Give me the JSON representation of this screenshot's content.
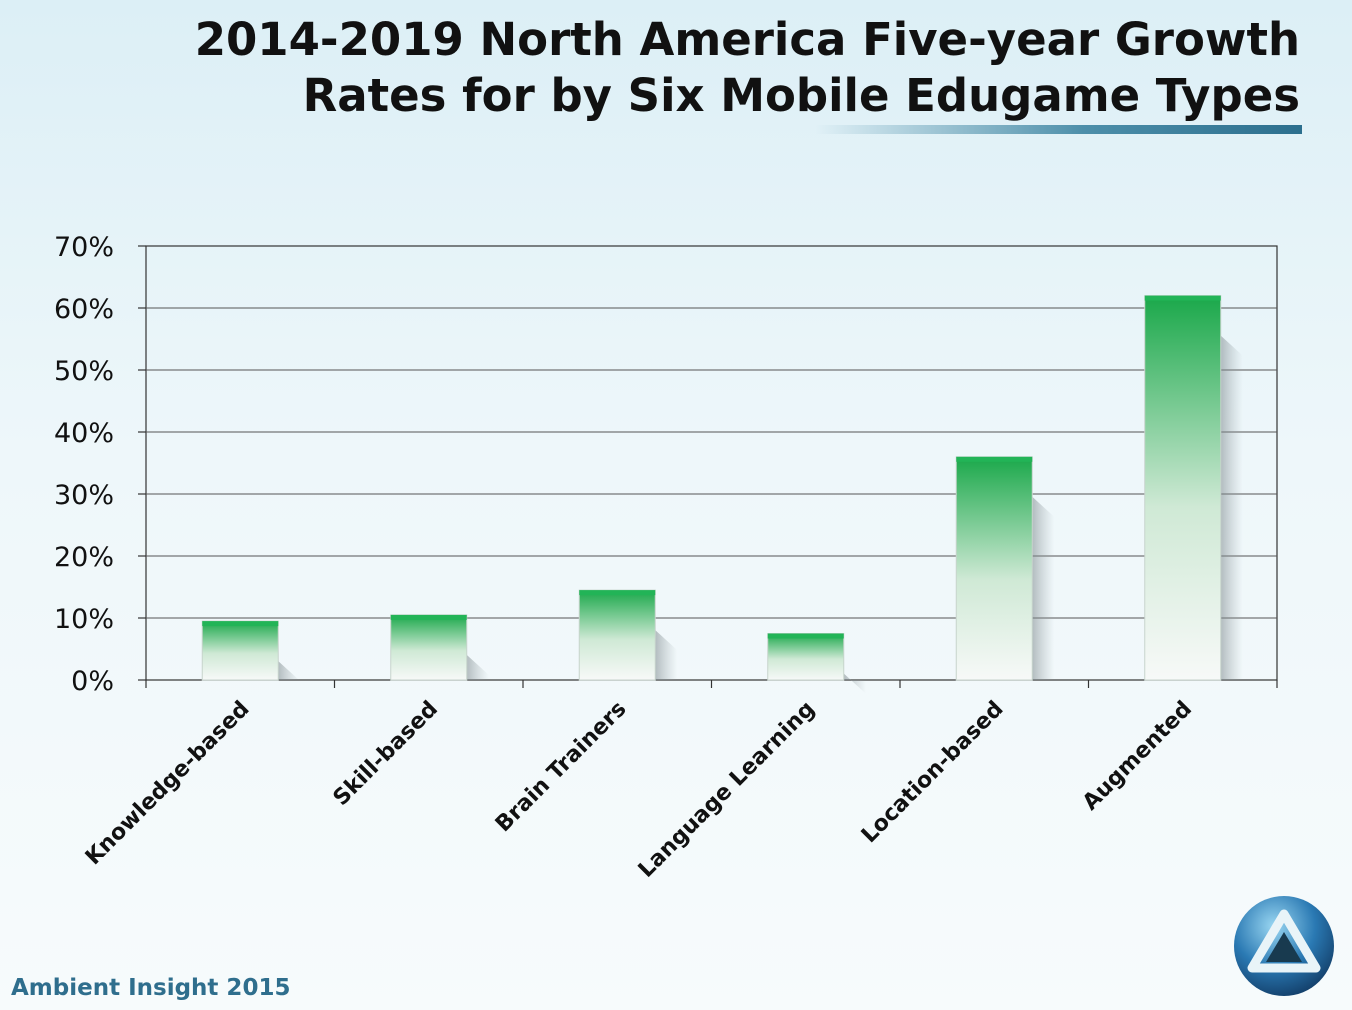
{
  "title": {
    "line1": "2014-2019 North America Five-year Growth",
    "line2": "Rates for by Six Mobile Edugame Types"
  },
  "footer": {
    "source": "Ambient Insight 2015"
  },
  "colors": {
    "bar_top": "#1aa84a",
    "bar_bottom": "#f7f9f8",
    "title_accent": "#2c6f8e"
  },
  "logo": {
    "icon": "triangle-sphere-logo-icon"
  },
  "chart_data": {
    "type": "bar",
    "categories": [
      "Knowledge-based",
      "Skill-based",
      "Brain Trainers",
      "Language Learning",
      "Location-based",
      "Augmented"
    ],
    "values": [
      9.5,
      10.5,
      14.5,
      7.5,
      36,
      62
    ],
    "title": "2014-2019 North America Five-year Growth Rates for by Six Mobile Edugame Types",
    "ylim": [
      0,
      70
    ],
    "yticks": [
      0,
      10,
      20,
      30,
      40,
      50,
      60,
      70
    ],
    "ytick_labels": [
      "0%",
      "10%",
      "20%",
      "30%",
      "40%",
      "50%",
      "60%",
      "70%"
    ],
    "grid": true,
    "legend": "none"
  }
}
